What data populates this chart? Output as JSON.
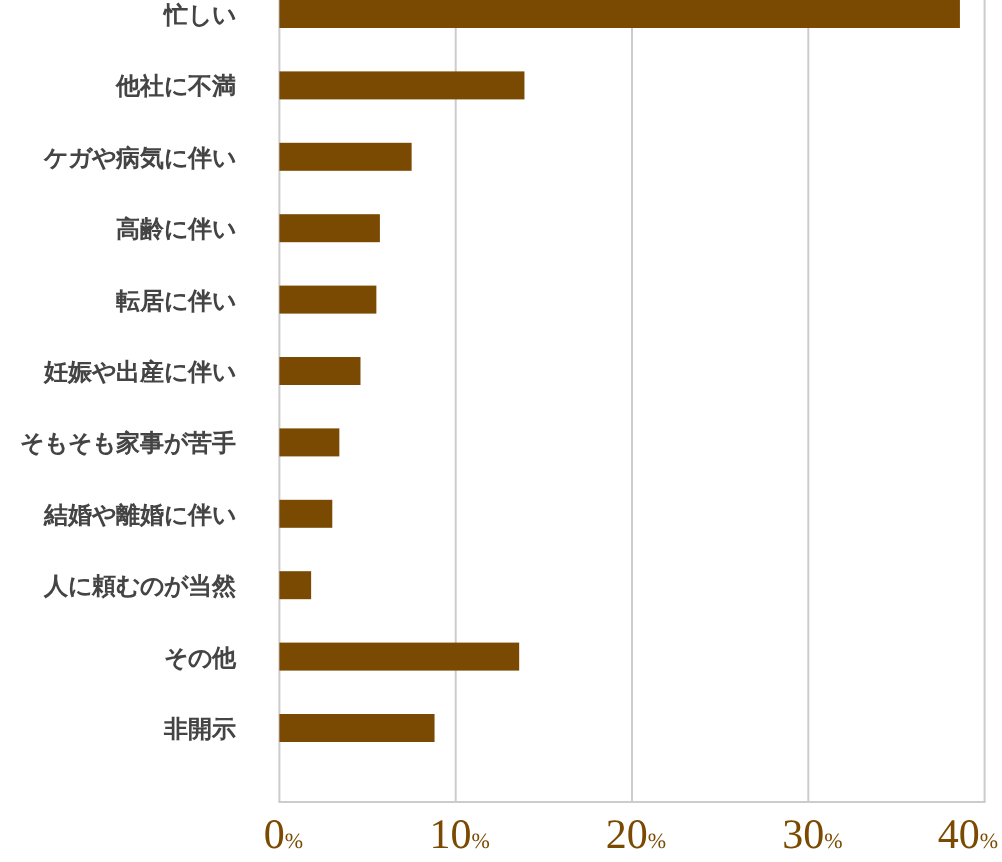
{
  "chart_data": {
    "type": "bar",
    "orientation": "horizontal",
    "categories": [
      "忙しい",
      "他社に不満",
      "ケガや病気に伴い",
      "高齢に伴い",
      "転居に伴い",
      "妊娠や出産に伴い",
      "そもそも家事が苦手",
      "結婚や離婚に伴い",
      "人に頼むのが当然",
      "その他",
      "非開示"
    ],
    "values": [
      38.6,
      13.9,
      7.5,
      5.7,
      5.5,
      4.6,
      3.4,
      3.0,
      1.8,
      13.6,
      8.8
    ],
    "color": "#7b4a02",
    "xlim": [
      0,
      40
    ],
    "xticks": [
      {
        "value": 0,
        "label": "0%"
      },
      {
        "value": 10,
        "label": "10%"
      },
      {
        "value": 20,
        "label": "20%"
      },
      {
        "value": 30,
        "label": "30%"
      },
      {
        "value": 40,
        "label": "40%"
      }
    ],
    "grid": "x"
  }
}
